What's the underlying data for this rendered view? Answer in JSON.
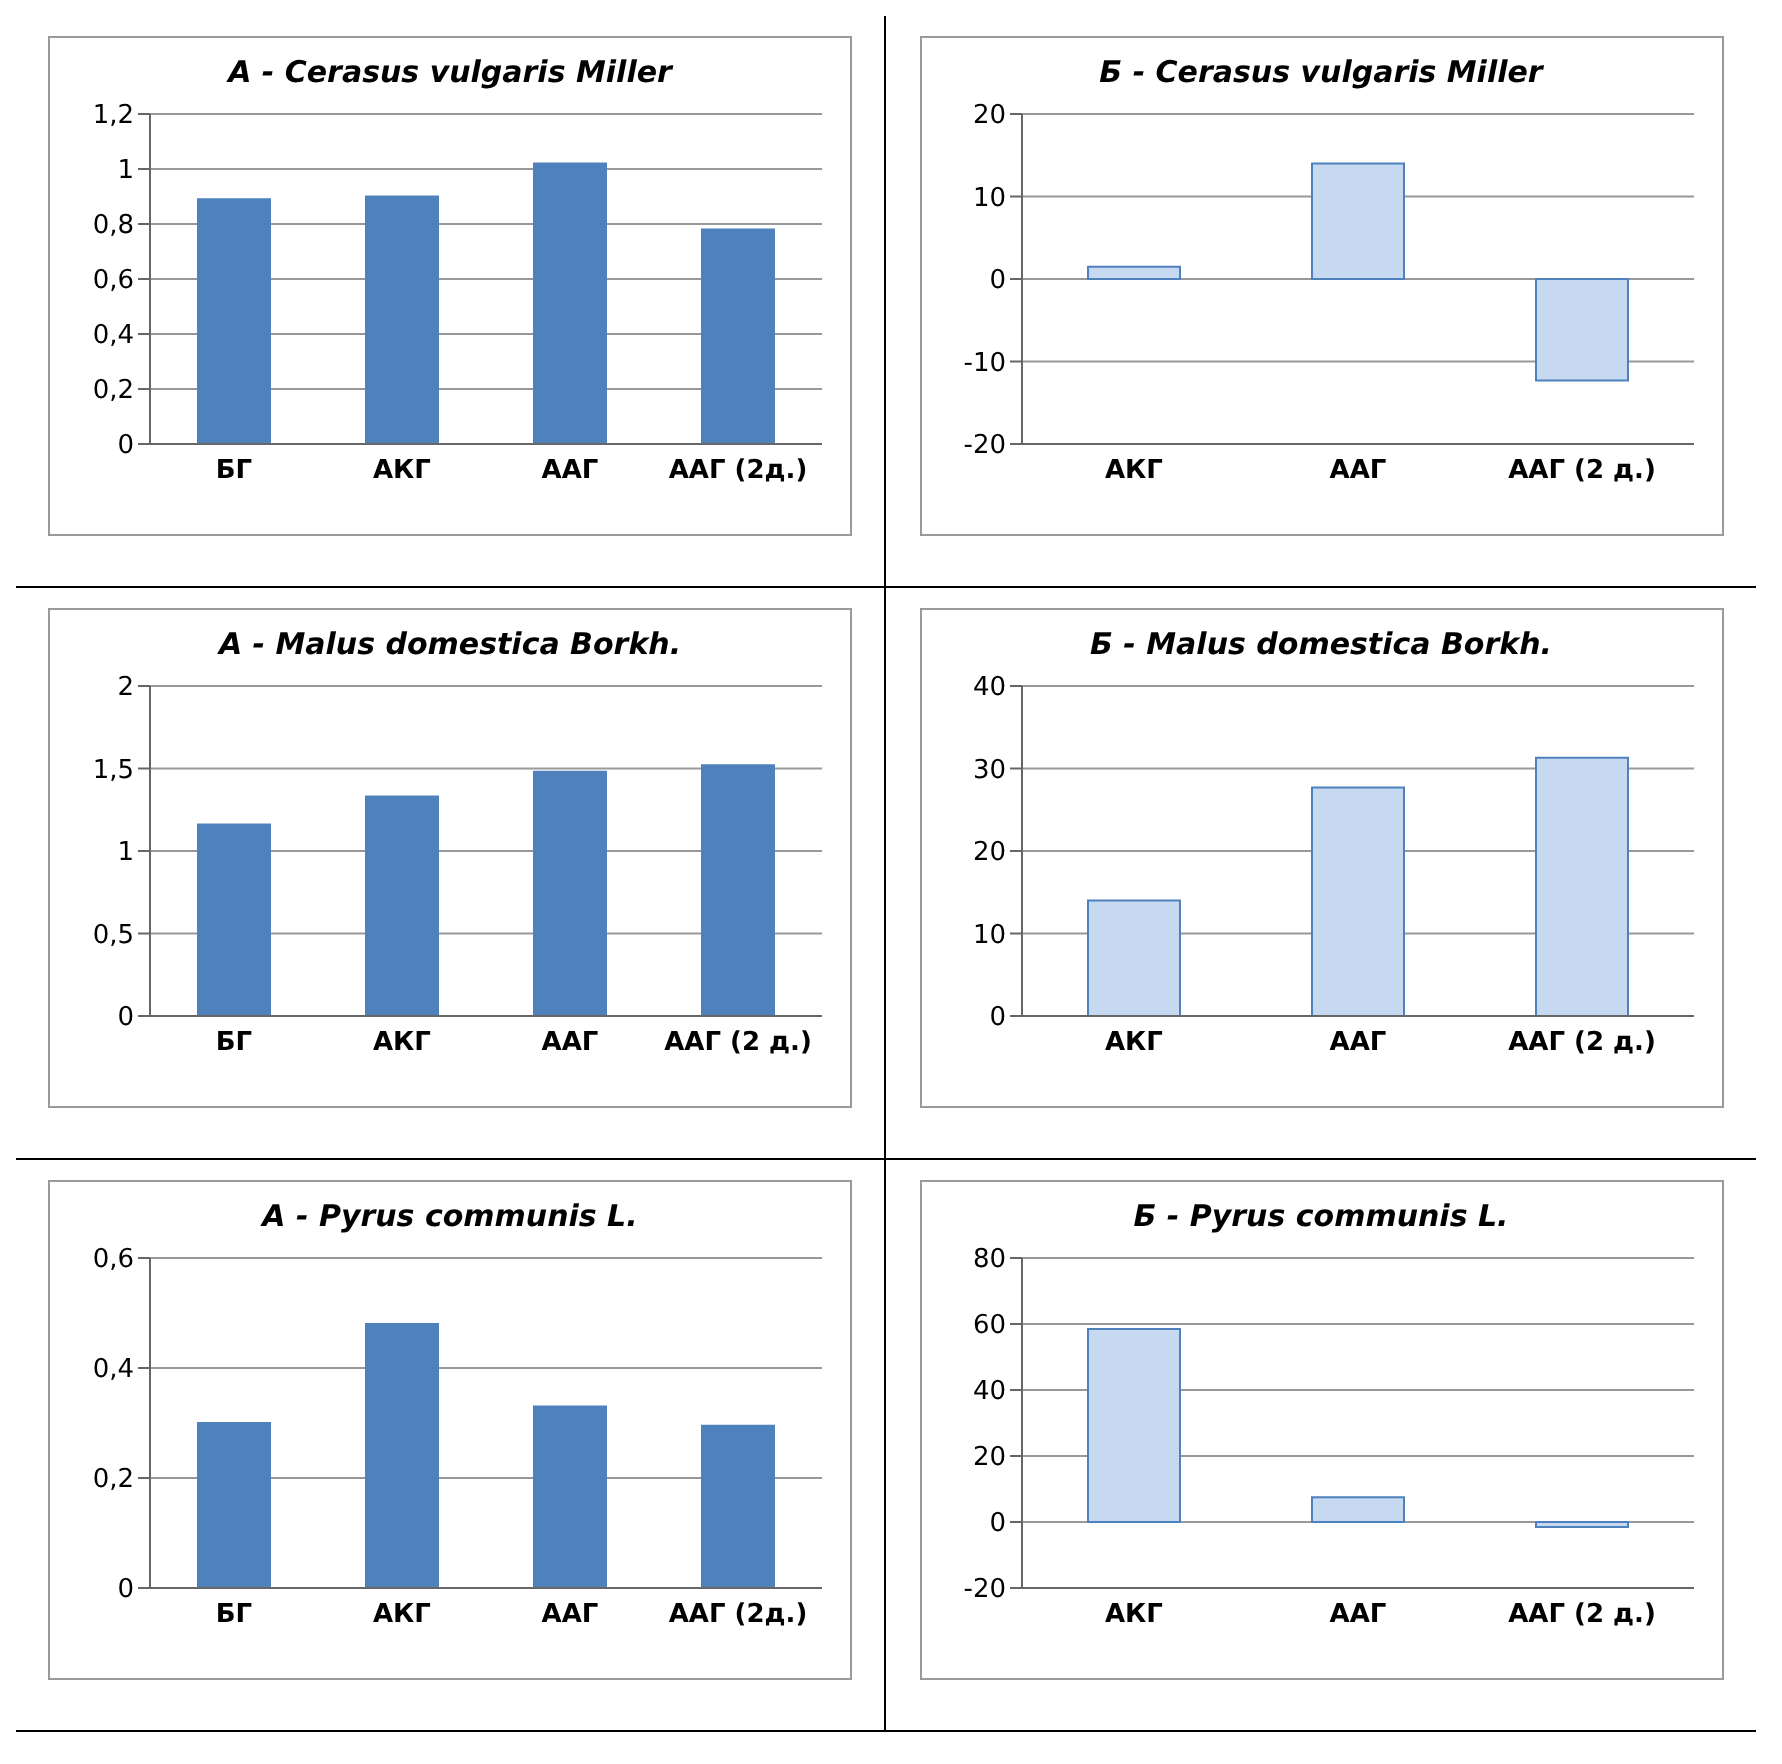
{
  "chart_data": [
    {
      "type": "bar",
      "title": "А  - Cerasus vulgaris Miller",
      "categories": [
        "БГ",
        "АКГ",
        "ААГ",
        "ААГ (2д.)"
      ],
      "values": [
        0.89,
        0.9,
        1.02,
        0.78
      ],
      "color": "#4f81bd",
      "ylim": [
        0,
        1.2
      ],
      "yticks": [
        0,
        {
          "value": 0.2,
          "label": "0,2"
        },
        {
          "value": 0.4,
          "label": "0,4"
        },
        {
          "value": 0.6,
          "label": "0,6"
        },
        {
          "value": 0.8,
          "label": "0,8"
        },
        1,
        {
          "value": 1.2,
          "label": "1,2"
        }
      ],
      "grid": "y",
      "legend": false
    },
    {
      "type": "bar",
      "title": "Б - Cerasus vulgaris Miller",
      "categories": [
        "АКГ",
        "ААГ",
        "ААГ (2 д.)"
      ],
      "values": [
        1.5,
        14,
        -12.3
      ],
      "color": "#c6d9f1",
      "ylim": [
        -20,
        20
      ],
      "yticks": [
        -20,
        -10,
        0,
        10,
        20
      ],
      "grid": "y",
      "legend": false
    },
    {
      "type": "bar",
      "title": "А  - Malus domestica Borkh.",
      "categories": [
        "БГ",
        "АКГ",
        "ААГ",
        "ААГ (2 д.)"
      ],
      "values": [
        1.16,
        1.33,
        1.48,
        1.52
      ],
      "color": "#4f81bd",
      "ylim": [
        0,
        2
      ],
      "yticks": [
        0,
        {
          "value": 0.5,
          "label": "0,5"
        },
        1,
        {
          "value": 1.5,
          "label": "1,5"
        },
        2
      ],
      "grid": "y",
      "legend": false
    },
    {
      "type": "bar",
      "title": "Б - Malus domestica Borkh.",
      "categories": [
        "АКГ",
        "ААГ",
        "ААГ (2 д.)"
      ],
      "values": [
        14,
        27.7,
        31.3
      ],
      "color": "#c6d9f1",
      "ylim": [
        0,
        40
      ],
      "yticks": [
        0,
        10,
        20,
        30,
        40
      ],
      "grid": "y",
      "legend": false
    },
    {
      "type": "bar",
      "title": "А - Pyrus communis L.",
      "categories": [
        "БГ",
        "АКГ",
        "ААГ",
        "ААГ (2д.)"
      ],
      "values": [
        0.3,
        0.48,
        0.33,
        0.295
      ],
      "color": "#4f81bd",
      "ylim": [
        0,
        0.6
      ],
      "yticks": [
        0,
        {
          "value": 0.2,
          "label": "0,2"
        },
        {
          "value": 0.4,
          "label": "0,4"
        },
        {
          "value": 0.6,
          "label": "0,6"
        }
      ],
      "grid": "y",
      "legend": false
    },
    {
      "type": "bar",
      "title": "Б - Pyrus communis L.",
      "categories": [
        "АКГ",
        "ААГ",
        "ААГ (2 д.)"
      ],
      "values": [
        58.5,
        7.5,
        -1.5
      ],
      "color": "#c6d9f1",
      "ylim": [
        -20,
        80
      ],
      "yticks": [
        -20,
        0,
        20,
        40,
        60,
        80
      ],
      "grid": "y",
      "legend": false
    }
  ]
}
